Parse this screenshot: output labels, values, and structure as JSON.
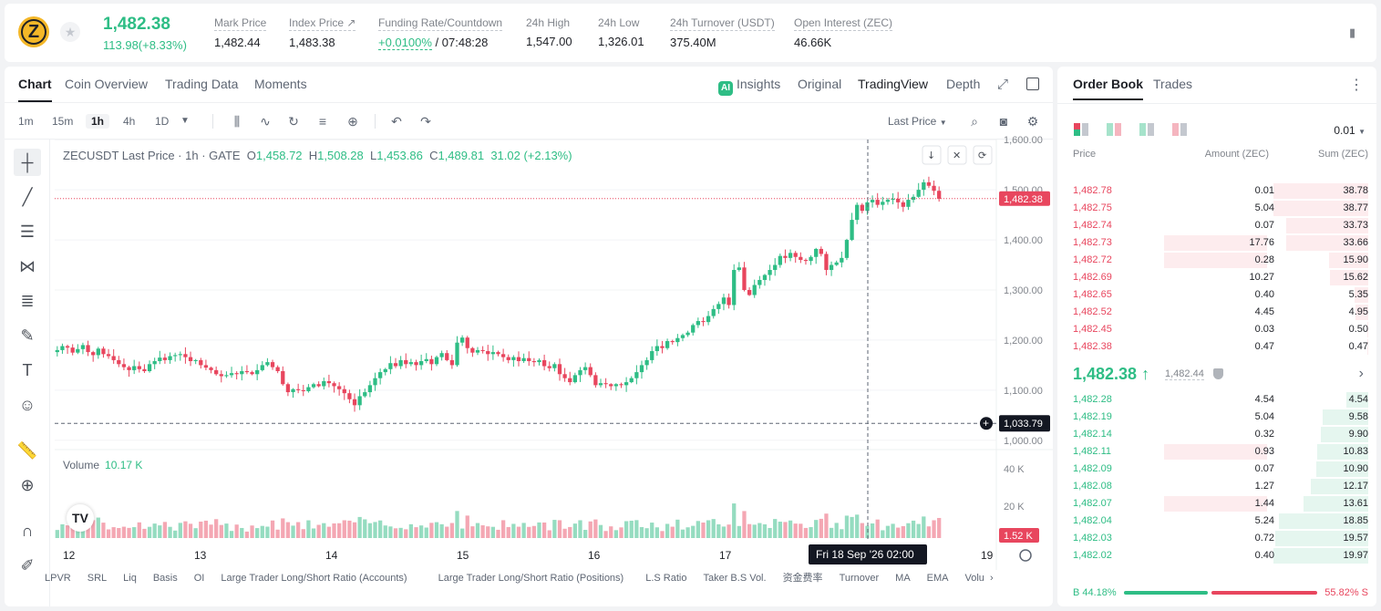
{
  "ticker": {
    "coin_letter": "Z",
    "last_price": "1,482.38",
    "change": "113.98(+8.33%)",
    "stats": [
      {
        "label": "Mark Price",
        "value": "1,482.44"
      },
      {
        "label": "Index Price ↗",
        "value": "1,483.38"
      },
      {
        "label": "Funding Rate/Countdown",
        "value_green": "+0.0100%",
        "value": "/ 07:48:28"
      },
      {
        "label": "24h High",
        "value": "1,547.00"
      },
      {
        "label": "24h Low",
        "value": "1,326.01"
      },
      {
        "label": "24h Turnover (USDT)",
        "value": "375.40M"
      },
      {
        "label": "Open Interest (ZEC)",
        "value": "46.66K"
      }
    ]
  },
  "chart_tabs": [
    "Chart",
    "Coin Overview",
    "Trading Data",
    "Moments"
  ],
  "chart_right_tabs": {
    "insights": "Insights",
    "original": "Original",
    "tradingview": "TradingView",
    "depth": "Depth"
  },
  "intervals": [
    "1m",
    "15m",
    "1h",
    "4h",
    "1D"
  ],
  "price_type": "Last Price",
  "legend": {
    "symbol": "ZECUSDT Last Price · 1h · GATE",
    "o_label": "O",
    "o": "1,458.72",
    "h_label": "H",
    "h": "1,508.28",
    "l_label": "L",
    "l": "1,453.86",
    "c_label": "C",
    "c": "1,489.81",
    "chg": "31.02 (+2.13%)"
  },
  "volume": {
    "label": "Volume",
    "value": "10.17 K"
  },
  "indicators": [
    "LPVR",
    "SRL",
    "Liq",
    "Basis",
    "OI",
    "Large Trader Long/Short Ratio (Accounts)",
    "Large Trader Long/Short Ratio (Positions)",
    "L.S Ratio",
    "Taker B.S Vol.",
    "资金费率",
    "Turnover",
    "MA",
    "EMA",
    "Volu"
  ],
  "chart_data": {
    "type": "candlestick",
    "title": "ZECUSDT Last Price · 1h · GATE",
    "y_ticks": [
      "1,600.00",
      "1,500.00",
      "1,400.00",
      "1,300.00",
      "1,200.00",
      "1,100.00",
      "1,000.00"
    ],
    "ylim": [
      996,
      1604
    ],
    "x_ticks": [
      "12",
      "13",
      "14",
      "15",
      "16",
      "17",
      "19"
    ],
    "last_price_label": "1,482.38",
    "last_price": 1482.38,
    "crosshair_price_label": "1,033.79",
    "crosshair_price": 1033.79,
    "crosshair_time": "Fri 18 Sep '26",
    "crosshair_clock": "02:00",
    "volume_ticks": [
      "40 K",
      "20 K"
    ],
    "volume_last_label": "1.52 K",
    "volume_max": 40000,
    "closes": [
      1180,
      1188,
      1185,
      1175,
      1182,
      1190,
      1176,
      1170,
      1183,
      1172,
      1168,
      1160,
      1152,
      1146,
      1140,
      1148,
      1142,
      1138,
      1152,
      1158,
      1165,
      1160,
      1168,
      1170,
      1172,
      1166,
      1158,
      1160,
      1150,
      1145,
      1140,
      1132,
      1128,
      1130,
      1134,
      1132,
      1138,
      1136,
      1132,
      1140,
      1150,
      1156,
      1146,
      1138,
      1112,
      1096,
      1102,
      1100,
      1098,
      1106,
      1112,
      1108,
      1118,
      1114,
      1108,
      1102,
      1094,
      1082,
      1070,
      1088,
      1096,
      1110,
      1124,
      1136,
      1142,
      1154,
      1148,
      1160,
      1152,
      1156,
      1150,
      1158,
      1162,
      1152,
      1166,
      1174,
      1160,
      1150,
      1195,
      1205,
      1184,
      1175,
      1180,
      1178,
      1172,
      1176,
      1172,
      1166,
      1160,
      1166,
      1158,
      1164,
      1158,
      1156,
      1160,
      1148,
      1144,
      1152,
      1132,
      1124,
      1116,
      1130,
      1140,
      1146,
      1130,
      1110,
      1114,
      1112,
      1108,
      1112,
      1110,
      1116,
      1124,
      1136,
      1150,
      1160,
      1178,
      1188,
      1184,
      1198,
      1196,
      1204,
      1210,
      1215,
      1230,
      1238,
      1236,
      1248,
      1262,
      1272,
      1285,
      1270,
      1340,
      1345,
      1300,
      1290,
      1310,
      1320,
      1330,
      1340,
      1350,
      1368,
      1364,
      1374,
      1366,
      1360,
      1358,
      1366,
      1382,
      1372,
      1340,
      1350,
      1355,
      1364,
      1400,
      1440,
      1470,
      1458,
      1475,
      1480,
      1470,
      1476,
      1480,
      1482,
      1475,
      1466,
      1480,
      1486,
      1500,
      1515,
      1508,
      1498,
      1482
    ]
  },
  "orderbook": {
    "tabs": [
      "Order Book",
      "Trades"
    ],
    "precision": "0.01",
    "headers": {
      "price": "Price",
      "amount": "Amount (ZEC)",
      "sum": "Sum (ZEC)"
    },
    "asks": [
      {
        "price": "1,482.78",
        "amount": "0.01",
        "sum": "38.78",
        "frac": 1.0,
        "amt_frac": 0
      },
      {
        "price": "1,482.75",
        "amount": "5.04",
        "sum": "38.77",
        "frac": 1.0,
        "amt_frac": 0
      },
      {
        "price": "1,482.74",
        "amount": "0.07",
        "sum": "33.73",
        "frac": 0.87,
        "amt_frac": 0
      },
      {
        "price": "1,482.73",
        "amount": "17.76",
        "sum": "33.66",
        "frac": 0.87,
        "amt_frac": 0.39
      },
      {
        "price": "1,482.72",
        "amount": "0.28",
        "sum": "15.90",
        "frac": 0.41,
        "amt_frac": 0.39
      },
      {
        "price": "1,482.69",
        "amount": "10.27",
        "sum": "15.62",
        "frac": 0.4,
        "amt_frac": 0
      },
      {
        "price": "1,482.65",
        "amount": "0.40",
        "sum": "5.35",
        "frac": 0.14,
        "amt_frac": 0
      },
      {
        "price": "1,482.52",
        "amount": "4.45",
        "sum": "4.95",
        "frac": 0.13,
        "amt_frac": 0
      },
      {
        "price": "1,482.45",
        "amount": "0.03",
        "sum": "0.50",
        "frac": 0.013,
        "amt_frac": 0
      },
      {
        "price": "1,482.38",
        "amount": "0.47",
        "sum": "0.47",
        "frac": 0.012,
        "amt_frac": 0
      }
    ],
    "mid_price": "1,482.38 ↑",
    "mark": "1,482.44",
    "bids": [
      {
        "price": "1,482.28",
        "amount": "4.54",
        "sum": "4.54",
        "frac": 0.23,
        "amt_frac": 0
      },
      {
        "price": "1,482.19",
        "amount": "5.04",
        "sum": "9.58",
        "frac": 0.48,
        "amt_frac": 0
      },
      {
        "price": "1,482.14",
        "amount": "0.32",
        "sum": "9.90",
        "frac": 0.5,
        "amt_frac": 0
      },
      {
        "price": "1,482.11",
        "amount": "0.93",
        "sum": "10.83",
        "frac": 0.54,
        "amt_frac": 0.39
      },
      {
        "price": "1,482.09",
        "amount": "0.07",
        "sum": "10.90",
        "frac": 0.55,
        "amt_frac": 0
      },
      {
        "price": "1,482.08",
        "amount": "1.27",
        "sum": "12.17",
        "frac": 0.61,
        "amt_frac": 0
      },
      {
        "price": "1,482.07",
        "amount": "1.44",
        "sum": "13.61",
        "frac": 0.68,
        "amt_frac": 0.39
      },
      {
        "price": "1,482.04",
        "amount": "5.24",
        "sum": "18.85",
        "frac": 0.94,
        "amt_frac": 0
      },
      {
        "price": "1,482.03",
        "amount": "0.72",
        "sum": "19.57",
        "frac": 0.98,
        "amt_frac": 0
      },
      {
        "price": "1,482.02",
        "amount": "0.40",
        "sum": "19.97",
        "frac": 1.0,
        "amt_frac": 0
      }
    ],
    "buy_label": "B 44.18%",
    "sell_label": "55.82% S",
    "buy_frac": 0.4418
  },
  "colors": {
    "up": "#2ebd85",
    "down": "#e8465e",
    "up_light": "#e5f6ef",
    "down_light": "#fdecee"
  }
}
